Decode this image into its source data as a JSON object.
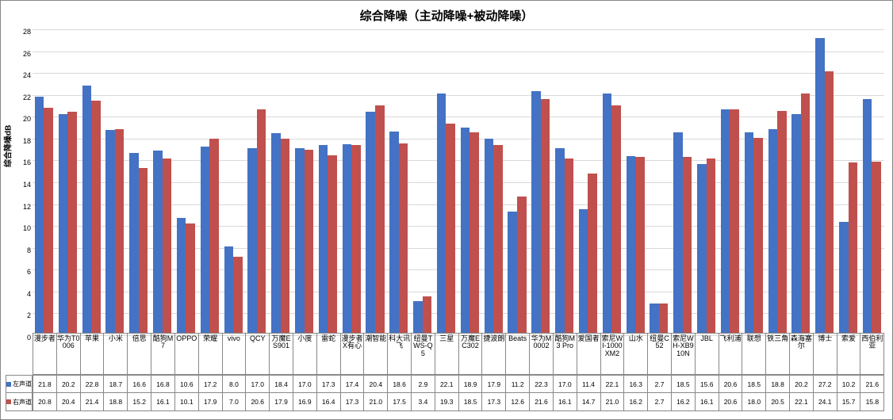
{
  "chart": {
    "title": "综合降噪（主动降噪+被动降噪）",
    "y_axis_label": "综合降噪dB",
    "y_min": 0,
    "y_max": 28,
    "y_tick_step": 2,
    "background_color": "#ffffff",
    "grid_color": "#d9d9d9",
    "border_color": "#888888",
    "title_fontsize": 15,
    "axis_label_fontsize": 10,
    "tick_fontsize": 9,
    "categories": [
      "漫步者",
      "华为T0006",
      "苹果",
      "小米",
      "倍思",
      "酷狗M7",
      "OPPO",
      "荣耀",
      "vivo",
      "QCY",
      "万魔ES901",
      "小度",
      "雷蛇",
      "漫步者X有心",
      "潮智能",
      "科大讯飞",
      "纽曼TWS-Q5",
      "三星",
      "万魔EC302",
      "捷波朗",
      "Beats",
      "华为M0002",
      "酷狗M3 Pro",
      "爱国者",
      "索尼WI-1000XM2",
      "山水",
      "纽曼C52",
      "索尼WH-XB910N",
      "JBL",
      "飞利浦",
      "联想",
      "铁三角",
      "森海塞尔",
      "博士",
      "索爱",
      "西伯利亚"
    ],
    "series": [
      {
        "name": "左声道",
        "color": "#4472c4",
        "values": [
          21.8,
          20.2,
          22.8,
          18.7,
          16.6,
          16.8,
          10.6,
          17.2,
          8.0,
          17.0,
          18.4,
          17.0,
          17.3,
          17.4,
          20.4,
          18.6,
          2.9,
          22.1,
          18.9,
          17.9,
          11.2,
          22.3,
          17.0,
          11.4,
          22.1,
          16.3,
          2.7,
          18.5,
          15.6,
          20.6,
          18.5,
          18.8,
          20.2,
          27.2,
          10.2,
          21.6
        ]
      },
      {
        "name": "右声道",
        "color": "#c0504d",
        "values": [
          20.8,
          20.4,
          21.4,
          18.8,
          15.2,
          16.1,
          10.1,
          17.9,
          7.0,
          20.6,
          17.9,
          16.9,
          16.4,
          17.3,
          21.0,
          17.5,
          3.4,
          19.3,
          18.5,
          17.3,
          12.6,
          21.6,
          16.1,
          14.7,
          21.0,
          16.2,
          2.7,
          16.2,
          16.1,
          20.6,
          18.0,
          20.5,
          22.1,
          24.1,
          15.7,
          15.8
        ]
      }
    ]
  }
}
